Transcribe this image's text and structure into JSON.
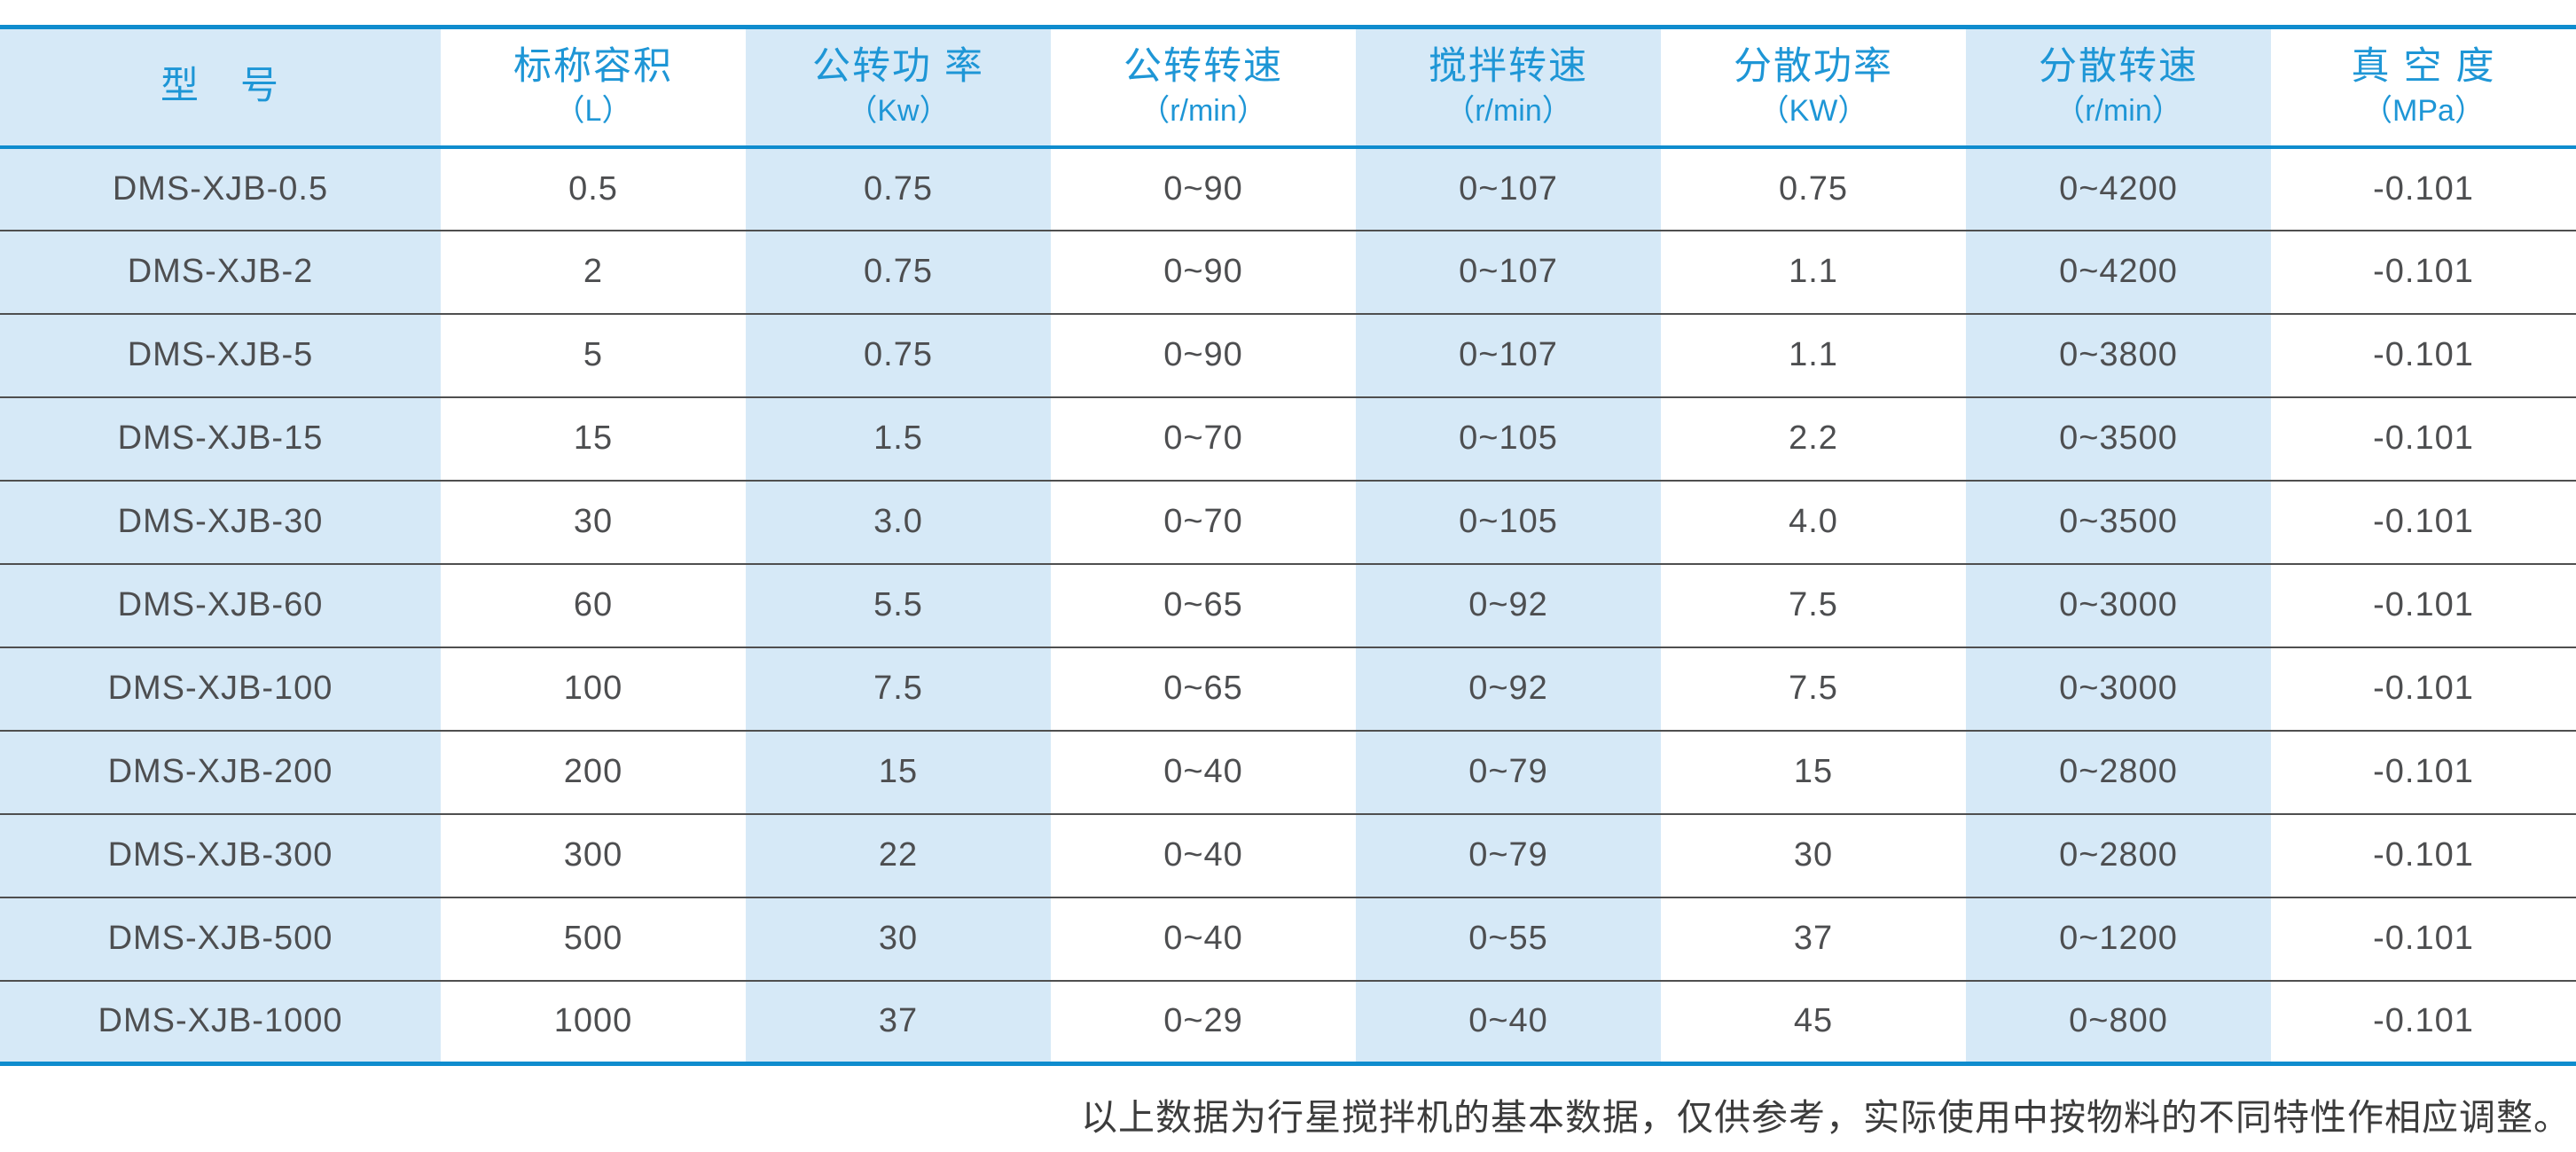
{
  "colors": {
    "accent_line": "#0f8cce",
    "header_text": "#1e96d6",
    "stripe_bg": "#d6e9f7",
    "row_separator": "#4f4f4f",
    "cell_text": "#4d4e50",
    "footnote_text": "#3c3c3c"
  },
  "table": {
    "columns": [
      {
        "title": "型　号",
        "unit": ""
      },
      {
        "title": "标称容积",
        "unit": "（L）"
      },
      {
        "title": "公转功 率",
        "unit": "（Kw）"
      },
      {
        "title": "公转转速",
        "unit": "（r/min）"
      },
      {
        "title": "搅拌转速",
        "unit": "（r/min）"
      },
      {
        "title": "分散功率",
        "unit": "（KW）"
      },
      {
        "title": "分散转速",
        "unit": "（r/min）"
      },
      {
        "title": "真 空 度",
        "unit": "（MPa）"
      }
    ],
    "rows": [
      [
        "DMS-XJB-0.5",
        "0.5",
        "0.75",
        "0~90",
        "0~107",
        "0.75",
        "0~4200",
        "-0.101"
      ],
      [
        "DMS-XJB-2",
        "2",
        "0.75",
        "0~90",
        "0~107",
        "1.1",
        "0~4200",
        "-0.101"
      ],
      [
        "DMS-XJB-5",
        "5",
        "0.75",
        "0~90",
        "0~107",
        "1.1",
        "0~3800",
        "-0.101"
      ],
      [
        "DMS-XJB-15",
        "15",
        "1.5",
        "0~70",
        "0~105",
        "2.2",
        "0~3500",
        "-0.101"
      ],
      [
        "DMS-XJB-30",
        "30",
        "3.0",
        "0~70",
        "0~105",
        "4.0",
        "0~3500",
        "-0.101"
      ],
      [
        "DMS-XJB-60",
        "60",
        "5.5",
        "0~65",
        "0~92",
        "7.5",
        "0~3000",
        "-0.101"
      ],
      [
        "DMS-XJB-100",
        "100",
        "7.5",
        "0~65",
        "0~92",
        "7.5",
        "0~3000",
        "-0.101"
      ],
      [
        "DMS-XJB-200",
        "200",
        "15",
        "0~40",
        "0~79",
        "15",
        "0~2800",
        "-0.101"
      ],
      [
        "DMS-XJB-300",
        "300",
        "22",
        "0~40",
        "0~79",
        "30",
        "0~2800",
        "-0.101"
      ],
      [
        "DMS-XJB-500",
        "500",
        "30",
        "0~40",
        "0~55",
        "37",
        "0~1200",
        "-0.101"
      ],
      [
        "DMS-XJB-1000",
        "1000",
        "37",
        "0~29",
        "0~40",
        "45",
        "0~800",
        "-0.101"
      ]
    ]
  },
  "footnote": {
    "text": "以上数据为行星搅拌机的基本数据，仅供参考，实际使用中按物料的不同特性作相应调整。"
  }
}
